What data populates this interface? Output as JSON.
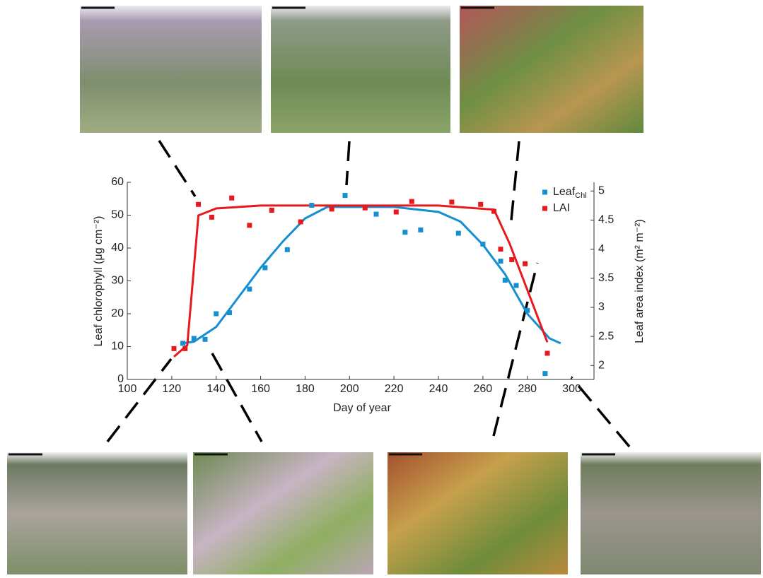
{
  "chart_data": {
    "type": "scatter",
    "xlabel": "Day of year",
    "ylabel": "Leaf chlorophyll (μg cm⁻²)",
    "y2label": "Leaf area index (m² m⁻²)",
    "xlim": [
      100,
      310
    ],
    "xticks": [
      100,
      120,
      140,
      160,
      180,
      200,
      220,
      240,
      260,
      280,
      300
    ],
    "ylim": [
      0,
      60
    ],
    "yticks": [
      0,
      10,
      20,
      30,
      40,
      50,
      60
    ],
    "y2lim": [
      1.76,
      5.15
    ],
    "y2ticks": [
      2,
      2.5,
      3,
      3.5,
      4,
      4.5,
      5
    ],
    "series": [
      {
        "name": "Leaf",
        "name_sub": "Chl",
        "color": "#148fd0",
        "x": [
          125,
          130,
          135,
          140,
          146,
          155,
          162,
          172,
          183,
          198,
          212,
          225,
          232,
          249,
          260,
          268,
          270,
          275,
          280,
          288
        ],
        "values": [
          11,
          12.5,
          12.2,
          20,
          20.3,
          27.5,
          34,
          39.5,
          53,
          56,
          50.3,
          44.8,
          45.5,
          44.5,
          41.2,
          36,
          30.2,
          28.6,
          21,
          1.8
        ]
      },
      {
        "name": "LAI",
        "color": "#e8191c",
        "axis": "y2",
        "x": [
          121,
          126,
          132,
          138,
          147,
          155,
          165,
          178,
          192,
          207,
          221,
          228,
          246,
          259,
          265,
          268,
          273,
          279,
          289
        ],
        "values": [
          2.29,
          2.29,
          4.77,
          4.55,
          4.88,
          4.41,
          4.67,
          4.47,
          4.69,
          4.71,
          4.64,
          4.82,
          4.81,
          4.77,
          4.65,
          4.0,
          3.82,
          3.75,
          2.21
        ]
      }
    ],
    "fit_lines": [
      {
        "color": "#148fd0",
        "x": [
          125,
          130,
          140,
          150,
          160,
          170,
          180,
          190,
          200,
          220,
          240,
          250,
          260,
          270,
          280,
          290,
          295
        ],
        "values": [
          11,
          11.5,
          16,
          25,
          34,
          42,
          49,
          52.5,
          52.5,
          52.5,
          51,
          48,
          41,
          32,
          20,
          12.5,
          11
        ]
      },
      {
        "color": "#e8191c",
        "axis": "y2",
        "x": [
          121,
          127,
          132,
          140,
          160,
          200,
          240,
          265,
          272,
          280,
          289
        ],
        "values": [
          2.15,
          2.35,
          4.58,
          4.7,
          4.75,
          4.75,
          4.75,
          4.68,
          4.1,
          3.3,
          2.4
        ]
      }
    ]
  }
}
